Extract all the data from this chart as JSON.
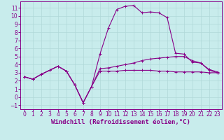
{
  "background_color": "#c8ecec",
  "grid_color": "#b0d8d8",
  "line_color": "#880088",
  "xlabel": "Windchill (Refroidissement éolien,°C)",
  "xlabel_fontsize": 6.5,
  "xtick_fontsize": 5.5,
  "ytick_fontsize": 5.5,
  "xlim": [
    -0.5,
    23.5
  ],
  "ylim": [
    -1.5,
    11.8
  ],
  "yticks": [
    -1,
    0,
    1,
    2,
    3,
    4,
    5,
    6,
    7,
    8,
    9,
    10,
    11
  ],
  "xticks": [
    0,
    1,
    2,
    3,
    4,
    5,
    6,
    7,
    8,
    9,
    10,
    11,
    12,
    13,
    14,
    15,
    16,
    17,
    18,
    19,
    20,
    21,
    22,
    23
  ],
  "line1": {
    "x": [
      0,
      1,
      2,
      3,
      4,
      5,
      6,
      7,
      8,
      9,
      10,
      11,
      12,
      13,
      14,
      15,
      16,
      17,
      18,
      19,
      20,
      21,
      22,
      23
    ],
    "y": [
      2.5,
      2.2,
      2.8,
      3.3,
      3.8,
      3.2,
      1.5,
      -0.7,
      1.3,
      5.3,
      8.5,
      10.8,
      11.2,
      11.3,
      10.4,
      10.5,
      10.4,
      9.8,
      5.4,
      5.3,
      4.3,
      4.2,
      3.3,
      3.0
    ]
  },
  "line2": {
    "x": [
      0,
      1,
      2,
      3,
      4,
      5,
      6,
      7,
      8,
      9,
      10,
      11,
      12,
      13,
      14,
      15,
      16,
      17,
      18,
      19,
      20,
      21,
      22,
      23
    ],
    "y": [
      2.5,
      2.2,
      2.8,
      3.3,
      3.8,
      3.2,
      1.5,
      -0.7,
      1.3,
      3.5,
      3.6,
      3.8,
      4.0,
      4.2,
      4.5,
      4.7,
      4.8,
      4.9,
      5.0,
      5.0,
      4.5,
      4.2,
      3.4,
      3.1
    ]
  },
  "line3": {
    "x": [
      0,
      1,
      2,
      3,
      4,
      5,
      6,
      7,
      8,
      9,
      10,
      11,
      12,
      13,
      14,
      15,
      16,
      17,
      18,
      19,
      20,
      21,
      22,
      23
    ],
    "y": [
      2.5,
      2.2,
      2.8,
      3.3,
      3.8,
      3.2,
      1.5,
      -0.7,
      1.3,
      3.2,
      3.2,
      3.2,
      3.3,
      3.3,
      3.3,
      3.3,
      3.2,
      3.2,
      3.1,
      3.1,
      3.1,
      3.1,
      3.0,
      3.0
    ]
  }
}
